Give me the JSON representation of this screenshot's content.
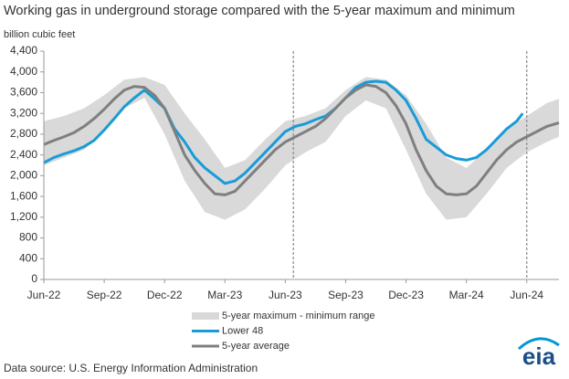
{
  "chart_data": {
    "type": "line",
    "title": "Working gas in underground  storage compared with the 5-year maximum and minimum",
    "y_label": "billion cubic feet",
    "source": "Data source:  U.S. Energy Information Administration",
    "logo": "eia",
    "xlim": [
      0,
      25.6
    ],
    "xticks": [
      {
        "value": 0,
        "label": "Jun-22"
      },
      {
        "value": 3,
        "label": "Sep-22"
      },
      {
        "value": 6,
        "label": "Dec-22"
      },
      {
        "value": 9,
        "label": "Mar-23"
      },
      {
        "value": 12,
        "label": "Jun-23"
      },
      {
        "value": 15,
        "label": "Sep-23"
      },
      {
        "value": 18,
        "label": "Dec-23"
      },
      {
        "value": 21,
        "label": "Mar-24"
      },
      {
        "value": 24,
        "label": "Jun-24"
      }
    ],
    "ylim": [
      0,
      4400
    ],
    "yticks": [
      0,
      {
        "value": 400,
        "label": "400"
      },
      {
        "value": 800,
        "label": "800"
      },
      {
        "value": 1200,
        "label": "1,200"
      },
      {
        "value": 1600,
        "label": "1,600"
      },
      {
        "value": 2000,
        "label": "2,000"
      },
      {
        "value": 2400,
        "label": "2,400"
      },
      {
        "value": 2800,
        "label": "2,800"
      },
      {
        "value": 3200,
        "label": "3,200"
      },
      {
        "value": 3600,
        "label": "3,600"
      },
      {
        "value": 4000,
        "label": "4,000"
      },
      {
        "value": 4400,
        "label": "4,400"
      }
    ],
    "reference_lines": [
      12.4,
      24
    ],
    "series": [
      {
        "name": "5-year maximum - minimum range",
        "color": "#d9d9d9",
        "kind": "band",
        "x": [
          0,
          1,
          2,
          3,
          4,
          5,
          6,
          7,
          8,
          9,
          10,
          11,
          12,
          13,
          14,
          15,
          16,
          17,
          18,
          19,
          20,
          21,
          22,
          23,
          24,
          25,
          25.6
        ],
        "upper": [
          3050,
          3150,
          3300,
          3550,
          3850,
          3900,
          3750,
          3200,
          2700,
          2150,
          2300,
          2700,
          3050,
          3150,
          3300,
          3650,
          3900,
          3850,
          3550,
          3000,
          2350,
          2150,
          2500,
          2900,
          3150,
          3400,
          3480
        ],
        "lower": [
          2200,
          2350,
          2500,
          2900,
          3300,
          3500,
          2800,
          1900,
          1300,
          1150,
          1350,
          1750,
          2200,
          2450,
          2650,
          3150,
          3450,
          3300,
          2500,
          1650,
          1150,
          1200,
          1650,
          2150,
          2450,
          2650,
          2750
        ]
      },
      {
        "name": "Lower 48",
        "color": "#1a9bd7",
        "x": [
          0,
          0.5,
          1,
          1.5,
          2,
          2.5,
          3,
          3.5,
          4,
          4.5,
          5,
          5.5,
          6,
          6.5,
          7,
          7.5,
          8,
          8.5,
          9,
          9.5,
          10,
          10.5,
          11,
          11.5,
          12,
          12.5,
          13,
          13.5,
          14,
          14.5,
          15,
          15.5,
          16,
          16.5,
          17,
          17.5,
          18,
          18.5,
          19,
          19.5,
          20,
          20.5,
          21,
          21.5,
          22,
          22.5,
          23,
          23.5,
          23.8
        ],
        "values": [
          2250,
          2350,
          2420,
          2480,
          2560,
          2680,
          2880,
          3100,
          3330,
          3500,
          3650,
          3480,
          3300,
          2900,
          2650,
          2350,
          2150,
          2000,
          1850,
          1900,
          2050,
          2250,
          2450,
          2650,
          2850,
          2950,
          3000,
          3080,
          3150,
          3300,
          3500,
          3700,
          3800,
          3820,
          3800,
          3650,
          3450,
          3100,
          2700,
          2550,
          2400,
          2330,
          2300,
          2350,
          2500,
          2700,
          2900,
          3050,
          3200
        ]
      },
      {
        "name": "5-year average",
        "color": "#7f7f7f",
        "x": [
          0,
          0.5,
          1,
          1.5,
          2,
          2.5,
          3,
          3.5,
          4,
          4.5,
          5,
          5.5,
          6,
          6.5,
          7,
          7.5,
          8,
          8.5,
          9,
          9.5,
          10,
          10.5,
          11,
          11.5,
          12,
          12.5,
          13,
          13.5,
          14,
          14.5,
          15,
          15.5,
          16,
          16.5,
          17,
          17.5,
          18,
          18.5,
          19,
          19.5,
          20,
          20.5,
          21,
          21.5,
          22,
          22.5,
          23,
          23.5,
          24,
          24.5,
          25,
          25.6
        ],
        "values": [
          2600,
          2680,
          2750,
          2830,
          2950,
          3100,
          3280,
          3480,
          3650,
          3720,
          3700,
          3550,
          3300,
          2850,
          2400,
          2100,
          1850,
          1650,
          1630,
          1700,
          1900,
          2100,
          2300,
          2500,
          2650,
          2750,
          2850,
          2950,
          3100,
          3300,
          3500,
          3650,
          3750,
          3720,
          3600,
          3350,
          3000,
          2500,
          2100,
          1800,
          1650,
          1630,
          1650,
          1800,
          2050,
          2300,
          2500,
          2650,
          2750,
          2850,
          2950,
          3020
        ]
      }
    ]
  }
}
